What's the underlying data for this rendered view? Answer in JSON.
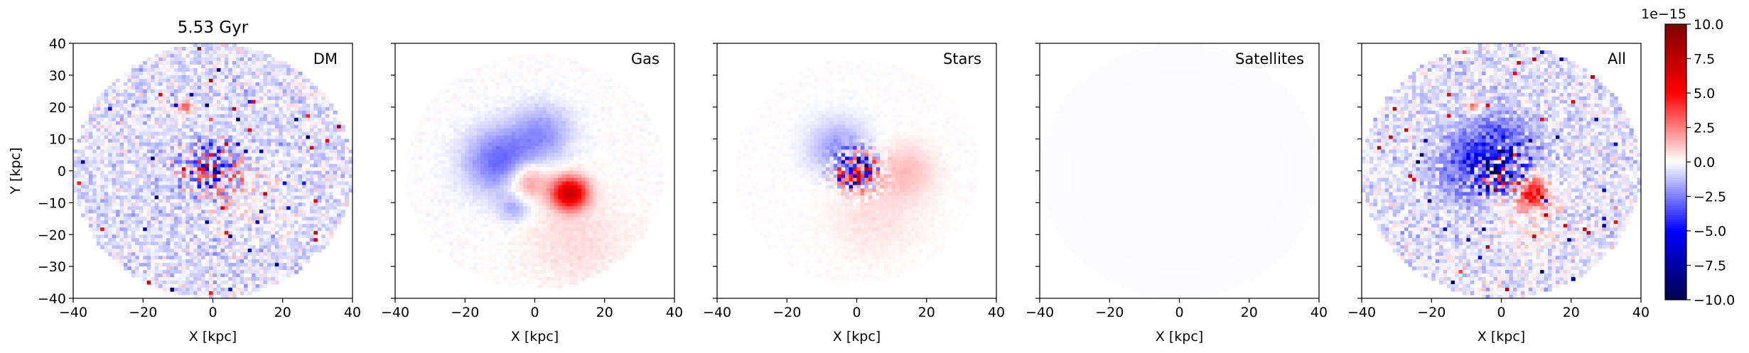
{
  "chart_data": {
    "type": "heatmap",
    "title": "5.53 Gyr",
    "xlabel": "X [kpc]",
    "ylabel": "Y [kpc]",
    "xlim": [
      -40,
      40
    ],
    "ylim": [
      -40,
      40
    ],
    "xticks": [
      -40,
      -20,
      0,
      20,
      40
    ],
    "yticks": [
      -40,
      -30,
      -20,
      -10,
      0,
      10,
      20,
      30,
      40
    ],
    "colormap": "seismic",
    "colorbar": {
      "min": -10.0,
      "max": 10.0,
      "offset_label": "1e−15",
      "ticks": [
        10.0,
        7.5,
        5.0,
        2.5,
        0.0,
        -2.5,
        -5.0,
        -7.5,
        -10.0
      ],
      "tick_labels": [
        "10.0",
        "7.5",
        "5.0",
        "2.5",
        "0.0",
        "−2.5",
        "−5.0",
        "−7.5",
        "−10.0"
      ]
    },
    "panels": [
      {
        "label": "DM",
        "disk_radius": 40,
        "background": -0.8,
        "noise": 0.9,
        "features": [
          {
            "x": -8,
            "y": 20,
            "sigma": 1.5,
            "amp": 4.0
          },
          {
            "x": 0,
            "y": 0,
            "sigma": 6,
            "amp": 0,
            "noise_amp": 6.0
          },
          {
            "x": 10,
            "y": -6,
            "sigma": 8,
            "amp": 0.8
          }
        ]
      },
      {
        "label": "Gas",
        "disk_radius": 37,
        "background": 0.0,
        "noise": 0.15,
        "features": [
          {
            "x": -10,
            "y": 3,
            "sigma": 7,
            "amp": -3.0
          },
          {
            "x": 2,
            "y": 12,
            "sigma": 6,
            "amp": -2.0
          },
          {
            "x": 10,
            "y": -7,
            "sigma": 3.5,
            "amp": 7.0
          },
          {
            "x": -2,
            "y": -3,
            "sigma": 4,
            "amp": 2.5
          },
          {
            "x": 12,
            "y": -22,
            "sigma": 10,
            "amp": 0.7
          },
          {
            "x": -6,
            "y": -12,
            "sigma": 3,
            "amp": -1.5
          }
        ]
      },
      {
        "label": "Stars",
        "disk_radius": 35,
        "background": 0.0,
        "noise": 0.1,
        "features": [
          {
            "x": 0,
            "y": 0,
            "sigma": 4,
            "amp": 0,
            "noise_amp": 9.0
          },
          {
            "x": -5,
            "y": 7,
            "sigma": 6,
            "amp": -2.0
          },
          {
            "x": 14,
            "y": 0,
            "sigma": 6,
            "amp": 1.2
          },
          {
            "x": 5,
            "y": -14,
            "sigma": 9,
            "amp": 0.6
          }
        ]
      },
      {
        "label": "Satellites",
        "disk_radius": 40,
        "background": -0.1,
        "noise": 0.0,
        "features": []
      },
      {
        "label": "All",
        "disk_radius": 40,
        "background": -0.8,
        "noise": 0.9,
        "features": [
          {
            "x": -8,
            "y": 20,
            "sigma": 1.5,
            "amp": 4.0
          },
          {
            "x": 0,
            "y": 0,
            "sigma": 5,
            "amp": 0,
            "noise_amp": 9.0
          },
          {
            "x": -2,
            "y": 8,
            "sigma": 7,
            "amp": -3.0
          },
          {
            "x": -10,
            "y": 0,
            "sigma": 6,
            "amp": -2.0
          },
          {
            "x": 9,
            "y": -7,
            "sigma": 3.5,
            "amp": 5.0
          },
          {
            "x": 8,
            "y": -16,
            "sigma": 8,
            "amp": 0.8
          }
        ]
      }
    ]
  }
}
